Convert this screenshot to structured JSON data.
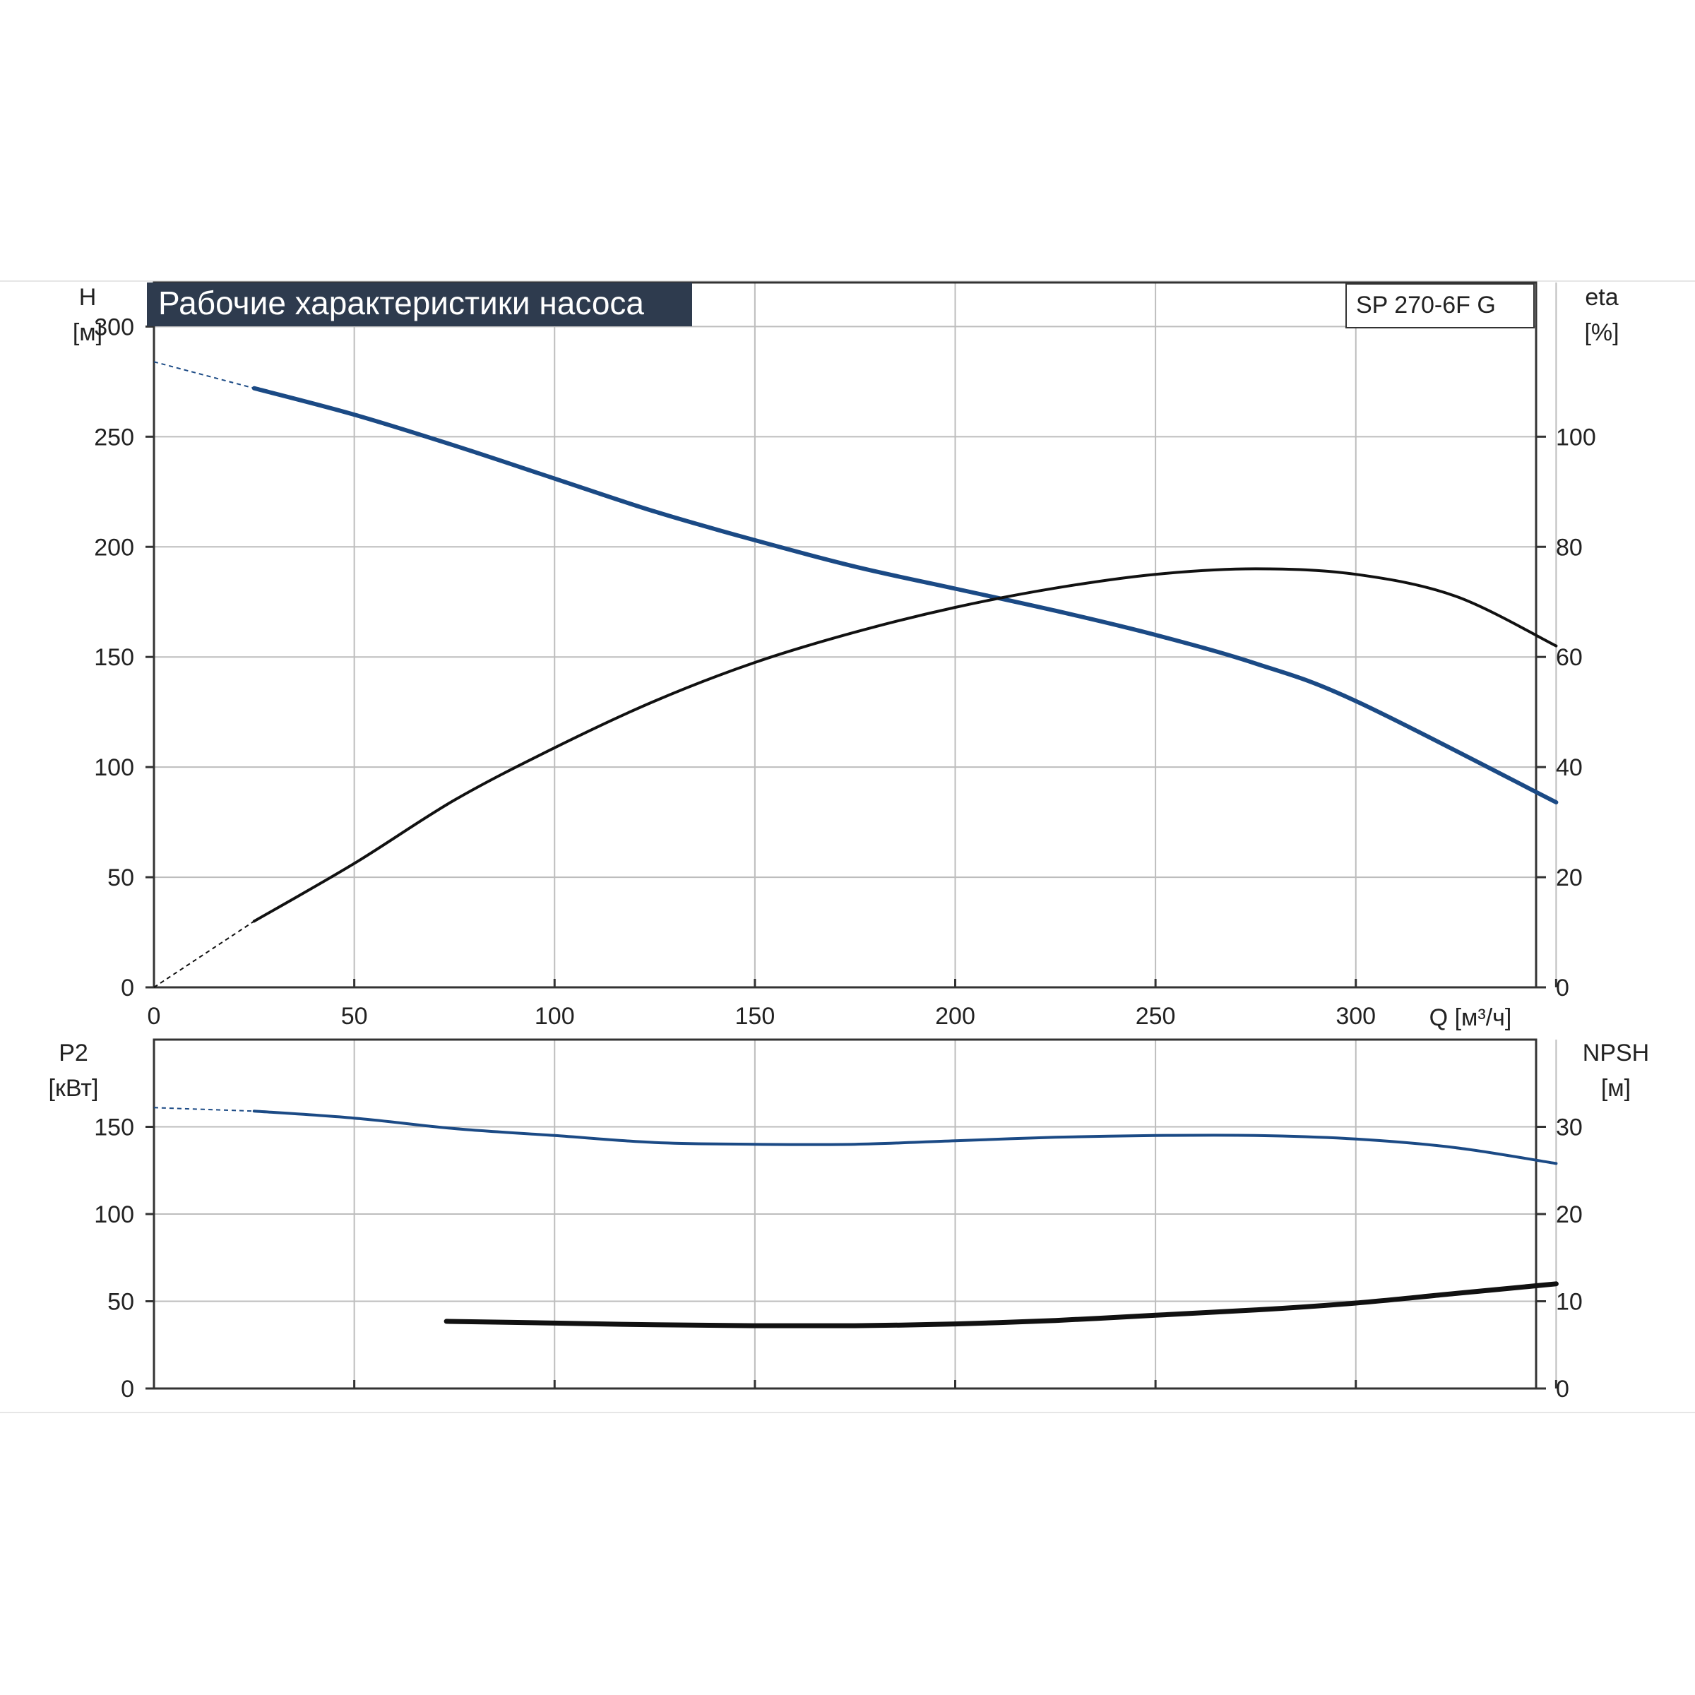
{
  "colors": {
    "head": "#1b4a85",
    "power": "#1b4a85",
    "efficiency": "#111111",
    "npsh": "#111111",
    "grid": "#bdbdbd",
    "axis": "#333333",
    "title_bg": "#2e3b4e",
    "title_fg": "#ffffff"
  },
  "chart_data": [
    {
      "type": "line",
      "title": "Рабочие характеристики насоса",
      "model": "SP 270-6F G",
      "xlabel": "Q [м³/ч]",
      "ylabel_left": [
        "H",
        "[м]"
      ],
      "ylabel_right": [
        "eta",
        "[%]"
      ],
      "xlim": [
        0,
        345
      ],
      "ylim_left": [
        0,
        320
      ],
      "ylim_right": [
        0,
        128
      ],
      "x_ticks": [
        0,
        50,
        100,
        150,
        200,
        250,
        300
      ],
      "y_ticks_left": [
        0,
        50,
        100,
        150,
        200,
        250,
        300
      ],
      "y_ticks_right": [
        0,
        20,
        40,
        60,
        80,
        100
      ],
      "grid": true,
      "series": [
        {
          "axis": "left",
          "x": [
            25,
            50,
            75,
            100,
            125,
            150,
            175,
            200,
            225,
            250,
            275,
            300,
            350
          ],
          "y": [
            272,
            260,
            246,
            231,
            216,
            203,
            191,
            181,
            171,
            160,
            147,
            130,
            84
          ],
          "extrapolated": {
            "x": [
              0,
              25
            ],
            "y": [
              284,
              272
            ]
          }
        },
        {
          "axis": "right",
          "x": [
            25,
            50,
            75,
            100,
            125,
            150,
            175,
            200,
            225,
            250,
            275,
            300,
            325,
            350
          ],
          "y": [
            12,
            22.5,
            34,
            43.5,
            52,
            59,
            64.5,
            69,
            72.5,
            75,
            76,
            75,
            71,
            62
          ],
          "extrapolated": {
            "x": [
              0,
              25
            ],
            "y": [
              0,
              12
            ]
          }
        }
      ]
    },
    {
      "type": "line",
      "ylabel_left": [
        "P2",
        "[кВт]"
      ],
      "ylabel_right": [
        "NPSH",
        "[м]"
      ],
      "xlim": [
        0,
        345
      ],
      "ylim_left": [
        0,
        200
      ],
      "ylim_right": [
        0,
        40
      ],
      "y_ticks_left": [
        0,
        50,
        100,
        150
      ],
      "y_ticks_right": [
        0,
        10,
        20,
        30
      ],
      "grid": true,
      "series": [
        {
          "axis": "left",
          "x": [
            25,
            50,
            75,
            100,
            125,
            150,
            175,
            200,
            225,
            250,
            275,
            300,
            325,
            350
          ],
          "y": [
            159,
            155,
            149,
            145,
            141,
            140,
            140,
            142,
            144,
            145,
            145,
            143,
            138,
            129
          ],
          "extrapolated": {
            "x": [
              0,
              25
            ],
            "y": [
              161,
              159
            ]
          }
        },
        {
          "axis": "right",
          "x": [
            73,
            100,
            125,
            150,
            175,
            200,
            225,
            250,
            275,
            300,
            325,
            350
          ],
          "y": [
            7.7,
            7.5,
            7.3,
            7.2,
            7.2,
            7.4,
            7.8,
            8.4,
            9,
            9.8,
            10.9,
            12
          ]
        }
      ]
    }
  ]
}
